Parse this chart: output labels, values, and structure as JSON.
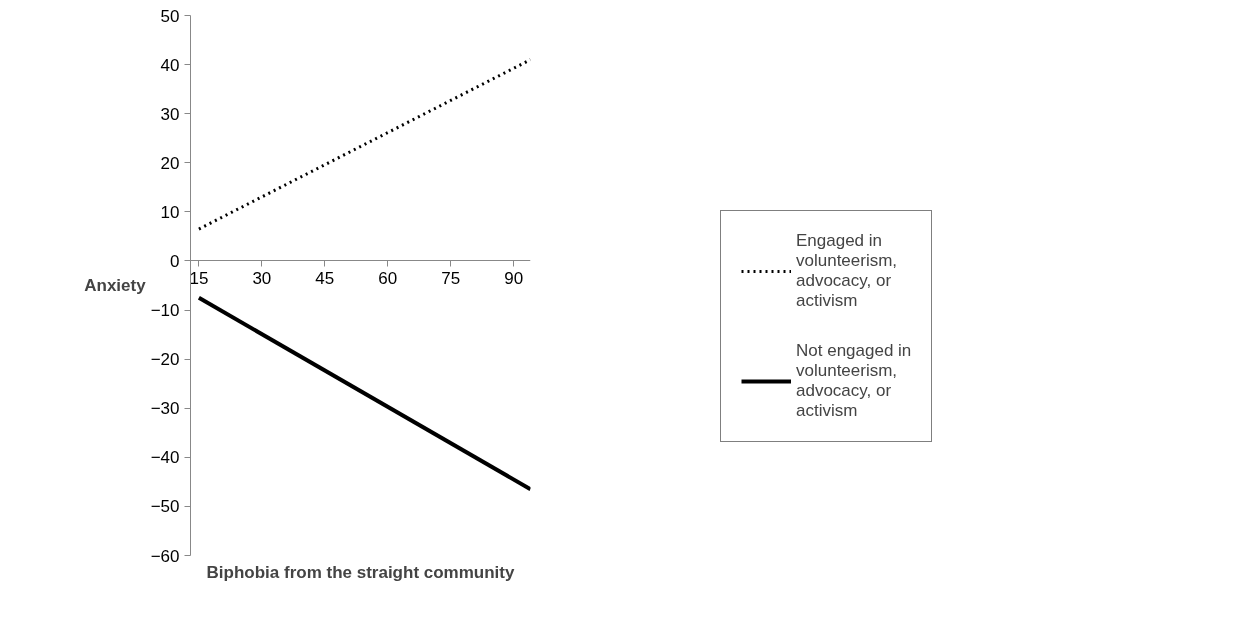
{
  "chart_data": {
    "type": "line",
    "xlabel": "Biphobia from the straight community",
    "ylabel": "Anxiety",
    "x": [
      15,
      94
    ],
    "series": [
      {
        "name": "Engaged in volunteerism, advocacy, or activism",
        "color": "#000000",
        "values": [
          6.5,
          41
        ],
        "line_style": "dotted"
      },
      {
        "name": "Not engaged in volunteerism, advocacy, or activism",
        "color": "#000000",
        "values": [
          -7.5,
          -46.5
        ],
        "line_style": "solid"
      }
    ],
    "xlim": [
      13,
      94
    ],
    "xticks": [
      15,
      30,
      45,
      60,
      75,
      90
    ],
    "ylim": [
      -60,
      50
    ],
    "yticks": [
      -60,
      -50,
      -40,
      -30,
      -20,
      -10,
      0,
      10,
      20,
      30,
      40,
      50
    ],
    "legend": "right"
  }
}
